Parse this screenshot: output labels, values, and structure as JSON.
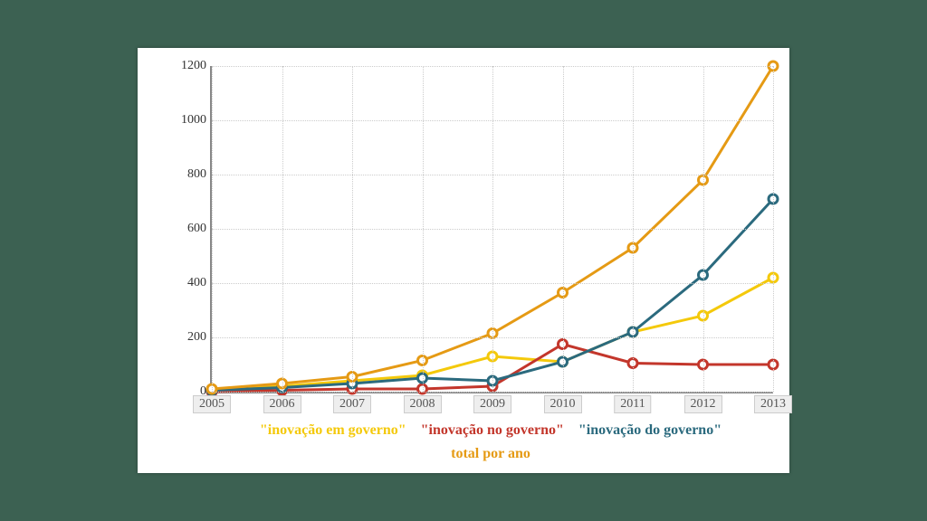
{
  "chart": {
    "type": "line",
    "background_color": "#ffffff",
    "page_background": "#3c6152",
    "grid_color": "#cccccc",
    "axis_color": "#888888",
    "label_fontsize": 14,
    "legend_fontsize": 16,
    "x": {
      "categories": [
        "2005",
        "2006",
        "2007",
        "2008",
        "2009",
        "2010",
        "2011",
        "2012",
        "2013"
      ]
    },
    "y": {
      "min": 0,
      "max": 1200,
      "tick_step": 200,
      "ticks": [
        0,
        200,
        400,
        600,
        800,
        1000,
        1200
      ]
    },
    "series": [
      {
        "key": "em",
        "label": "\"inovação em governo\"",
        "color": "#f4c90b",
        "values": [
          5,
          20,
          40,
          60,
          130,
          110,
          220,
          280,
          420
        ]
      },
      {
        "key": "no",
        "label": "\"inovação no governo\"",
        "color": "#c3362b",
        "values": [
          0,
          5,
          10,
          10,
          20,
          175,
          105,
          100,
          100
        ]
      },
      {
        "key": "do",
        "label": "\"inovação do governo\"",
        "color": "#2b6a7e",
        "values": [
          5,
          15,
          30,
          50,
          40,
          110,
          220,
          430,
          710
        ]
      },
      {
        "key": "total",
        "label": "total por ano",
        "color": "#e59a14",
        "values": [
          10,
          30,
          55,
          115,
          215,
          365,
          530,
          780,
          1200
        ]
      }
    ],
    "line_width": 3,
    "marker_radius": 5,
    "marker_fill": "#ffffff"
  }
}
